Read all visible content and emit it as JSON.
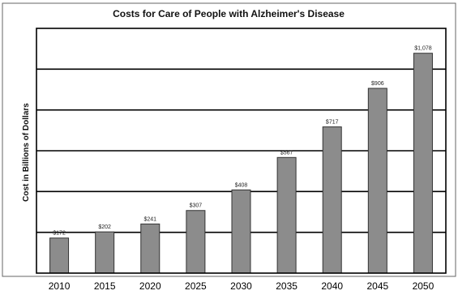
{
  "chart_data": {
    "type": "bar",
    "title": "Costs for Care of People with Alzheimer's Disease",
    "xlabel": "",
    "ylabel": "Cost in Billions of Dollars",
    "categories": [
      "2010",
      "2015",
      "2020",
      "2025",
      "2030",
      "2035",
      "2040",
      "2045",
      "2050"
    ],
    "values": [
      172,
      202,
      241,
      307,
      408,
      567,
      717,
      906,
      1078
    ],
    "data_labels": [
      "$172",
      "$202",
      "$241",
      "$307",
      "$408",
      "$567",
      "$717",
      "$906",
      "$1,078"
    ],
    "ylim": [
      0,
      1200
    ],
    "grid": true,
    "bar_color": "#8c8c8c",
    "legend": "none"
  }
}
